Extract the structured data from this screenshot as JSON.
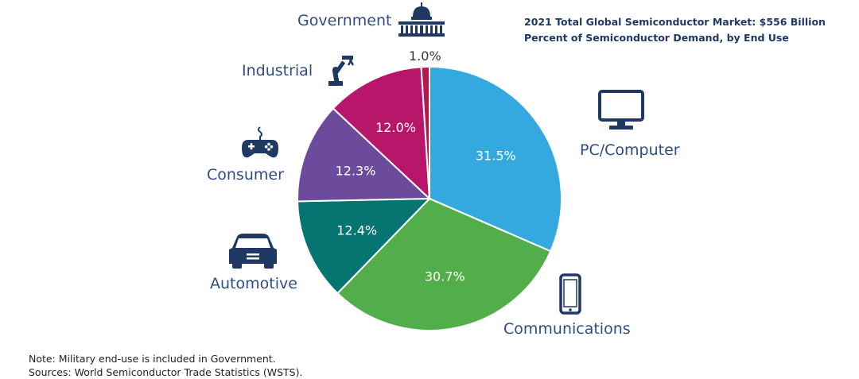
{
  "chart_data": {
    "type": "pie",
    "title": "2021 Total Global Semiconductor Market: $556 Billion Percent of Semiconductor Demand, by End Use",
    "categories": [
      "PC/Computer",
      "Communications",
      "Automotive",
      "Consumer",
      "Industrial",
      "Government"
    ],
    "values": [
      31.5,
      30.7,
      12.4,
      12.3,
      12.0,
      1.0
    ],
    "value_labels": [
      "31.5%",
      "30.7%",
      "12.4%",
      "12.3%",
      "12.0%",
      "1.0%"
    ],
    "colors": [
      "#33a9e0",
      "#52ae4a",
      "#067572",
      "#6c4a9c",
      "#b8166b",
      "#b8164e"
    ],
    "start_angle_deg": 0,
    "direction": "clockwise",
    "icons": [
      "monitor-icon",
      "smartphone-icon",
      "car-icon",
      "gamepad-icon",
      "robot-arm-icon",
      "capitol-building-icon"
    ]
  },
  "notes": {
    "line1": "Note: Military end-use is included in Government.",
    "line2": "Sources: World Semiconductor Trade Statistics (WSTS)."
  },
  "colors": {
    "label_text": "#2f4d82",
    "icon": "#1f3864",
    "slice_text": "#ffffff"
  }
}
